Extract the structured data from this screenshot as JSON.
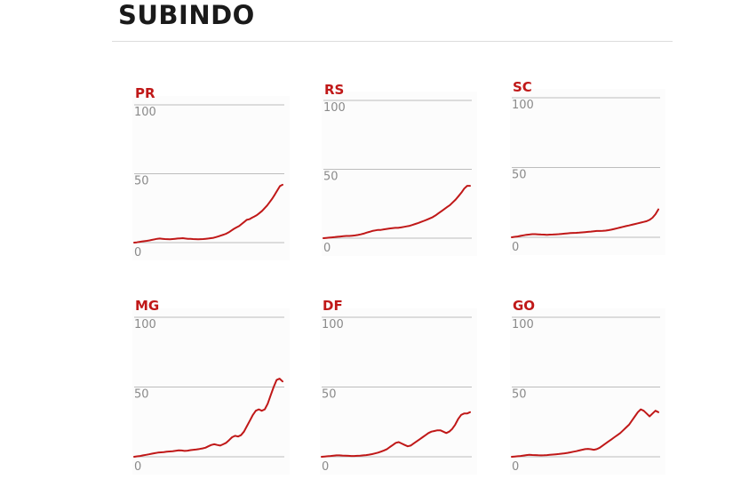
{
  "header": {
    "title": "SUBINDO"
  },
  "colors": {
    "accent": "#c01818",
    "gridline": "#bdbdbd",
    "tick_label": "#8a8a8a",
    "title": "#1a1a1a"
  },
  "chart_data": [
    {
      "type": "line",
      "title": "PR",
      "ylim": [
        0,
        100
      ],
      "yticks": [
        "100",
        "50",
        "0"
      ],
      "grid": true,
      "y": [
        0,
        0.2,
        0.5,
        0.8,
        1,
        1.3,
        1.6,
        2,
        2.4,
        2.8,
        3,
        2.8,
        2.6,
        2.5,
        2.4,
        2.6,
        2.8,
        3,
        3.1,
        3.2,
        3,
        2.8,
        2.7,
        2.6,
        2.5,
        2.4,
        2.5,
        2.6,
        2.8,
        3,
        3.2,
        3.5,
        4,
        4.6,
        5.2,
        5.8,
        6.5,
        7.5,
        8.8,
        10,
        11,
        12,
        13.5,
        15,
        16.5,
        17,
        18,
        19,
        20,
        21.5,
        23,
        25,
        27,
        29.5,
        32,
        35,
        38,
        41,
        42
      ]
    },
    {
      "type": "line",
      "title": "RS",
      "ylim": [
        0,
        100
      ],
      "yticks": [
        "100",
        "50",
        "0"
      ],
      "grid": true,
      "y": [
        0,
        0.2,
        0.4,
        0.6,
        0.8,
        1,
        1.2,
        1.4,
        1.6,
        1.6,
        1.8,
        2,
        2.3,
        2.8,
        3.3,
        4,
        4.6,
        5.2,
        5.6,
        6,
        6,
        6.4,
        6.7,
        7,
        7.3,
        7.5,
        7.5,
        7.8,
        8.2,
        8.6,
        9,
        9.6,
        10.3,
        11,
        11.8,
        12.6,
        13.4,
        14.3,
        15.2,
        16.5,
        18,
        19.5,
        21,
        22.5,
        24,
        26,
        28,
        30.5,
        33,
        36,
        38,
        38
      ]
    },
    {
      "type": "line",
      "title": "SC",
      "ylim": [
        0,
        100
      ],
      "yticks": [
        "100",
        "50",
        "0"
      ],
      "grid": true,
      "y": [
        0,
        0.3,
        0.6,
        1,
        1.4,
        1.8,
        2,
        2.2,
        2.2,
        2.1,
        2,
        1.9,
        1.8,
        1.9,
        2,
        2.1,
        2.2,
        2.4,
        2.6,
        2.8,
        3,
        3.1,
        3.2,
        3.3,
        3.5,
        3.7,
        3.9,
        4.1,
        4.3,
        4.5,
        4.5,
        4.6,
        4.8,
        5.1,
        5.5,
        6,
        6.5,
        7,
        7.5,
        8,
        8.5,
        9,
        9.5,
        10,
        10.5,
        11,
        11.5,
        12.5,
        14,
        16.5,
        20
      ]
    },
    {
      "type": "line",
      "title": "MG",
      "ylim": [
        0,
        100
      ],
      "yticks": [
        "100",
        "50",
        "0"
      ],
      "grid": true,
      "y": [
        0,
        0.3,
        0.6,
        1,
        1.4,
        1.8,
        2.2,
        2.6,
        3,
        3.2,
        3.4,
        3.6,
        3.8,
        4,
        4.3,
        4.6,
        4.5,
        4.2,
        4.4,
        4.8,
        5,
        5.3,
        5.6,
        6,
        6.5,
        7.5,
        8.5,
        9,
        8.5,
        8,
        9,
        10,
        12,
        14,
        15,
        14.5,
        15.5,
        18,
        22,
        26,
        30,
        33,
        34,
        33,
        34,
        38,
        44,
        50,
        55,
        56,
        54
      ]
    },
    {
      "type": "line",
      "title": "DF",
      "ylim": [
        0,
        100
      ],
      "yticks": [
        "100",
        "50",
        "0"
      ],
      "grid": true,
      "y": [
        0,
        0.2,
        0.4,
        0.6,
        0.8,
        1,
        1,
        0.9,
        0.8,
        0.7,
        0.6,
        0.6,
        0.7,
        0.8,
        1,
        1.2,
        1.5,
        1.9,
        2.4,
        3,
        3.7,
        4.5,
        5.5,
        7,
        8.5,
        10,
        10.5,
        9.5,
        8.5,
        7.5,
        8,
        9.5,
        11,
        12.5,
        14,
        15.5,
        17,
        18,
        18.5,
        19,
        19,
        18,
        17,
        18,
        20,
        23,
        27,
        30,
        31,
        31,
        32
      ]
    },
    {
      "type": "line",
      "title": "GO",
      "ylim": [
        0,
        100
      ],
      "yticks": [
        "100",
        "50",
        "0"
      ],
      "grid": true,
      "y": [
        0,
        0.2,
        0.4,
        0.6,
        0.9,
        1.2,
        1.4,
        1.3,
        1.2,
        1.1,
        1,
        1.1,
        1.2,
        1.4,
        1.6,
        1.8,
        2,
        2.2,
        2.5,
        2.8,
        3.2,
        3.6,
        4,
        4.5,
        5,
        5.5,
        5.7,
        5.4,
        5,
        5.5,
        6.5,
        8,
        9.5,
        11,
        12.5,
        14,
        15.5,
        17,
        19,
        21,
        23,
        26,
        29,
        32,
        34,
        33,
        31,
        29,
        31,
        33,
        32
      ]
    }
  ]
}
